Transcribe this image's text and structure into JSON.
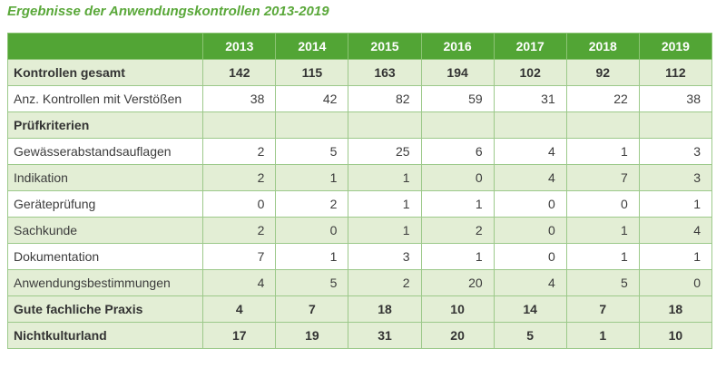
{
  "title": "Ergebnisse der Anwendungskontrollen 2013-2019",
  "columns": [
    "2013",
    "2014",
    "2015",
    "2016",
    "2017",
    "2018",
    "2019"
  ],
  "rows": {
    "kontrollen_gesamt": {
      "label": "Kontrollen gesamt",
      "values": [
        "142",
        "115",
        "163",
        "194",
        "102",
        "92",
        "112"
      ]
    },
    "verstoesse": {
      "label": "Anz. Kontrollen mit Verstößen",
      "values": [
        "38",
        "42",
        "82",
        "59",
        "31",
        "22",
        "38"
      ]
    },
    "pruefkriterien": {
      "label": "Prüfkriterien"
    },
    "gewaesser": {
      "label": "Gewässerabstandsauflagen",
      "values": [
        "2",
        "5",
        "25",
        "6",
        "4",
        "1",
        "3"
      ]
    },
    "indikation": {
      "label": "Indikation",
      "values": [
        "2",
        "1",
        "1",
        "0",
        "4",
        "7",
        "3"
      ]
    },
    "geraete": {
      "label": "Geräteprüfung",
      "values": [
        "0",
        "2",
        "1",
        "1",
        "0",
        "0",
        "1"
      ]
    },
    "sachkunde": {
      "label": "Sachkunde",
      "values": [
        "2",
        "0",
        "1",
        "2",
        "0",
        "1",
        "4"
      ]
    },
    "dokumentation": {
      "label": "Dokumentation",
      "values": [
        "7",
        "1",
        "3",
        "1",
        "0",
        "1",
        "1"
      ]
    },
    "anwendung": {
      "label": "Anwendungsbestimmungen",
      "values": [
        "4",
        "5",
        "2",
        "20",
        "4",
        "5",
        "0"
      ]
    },
    "gute_praxis": {
      "label": "Gute fachliche Praxis",
      "values": [
        "4",
        "7",
        "18",
        "10",
        "14",
        "7",
        "18"
      ]
    },
    "nichtkulturland": {
      "label": "Nichtkulturland",
      "values": [
        "17",
        "19",
        "31",
        "20",
        "5",
        "1",
        "10"
      ]
    }
  }
}
